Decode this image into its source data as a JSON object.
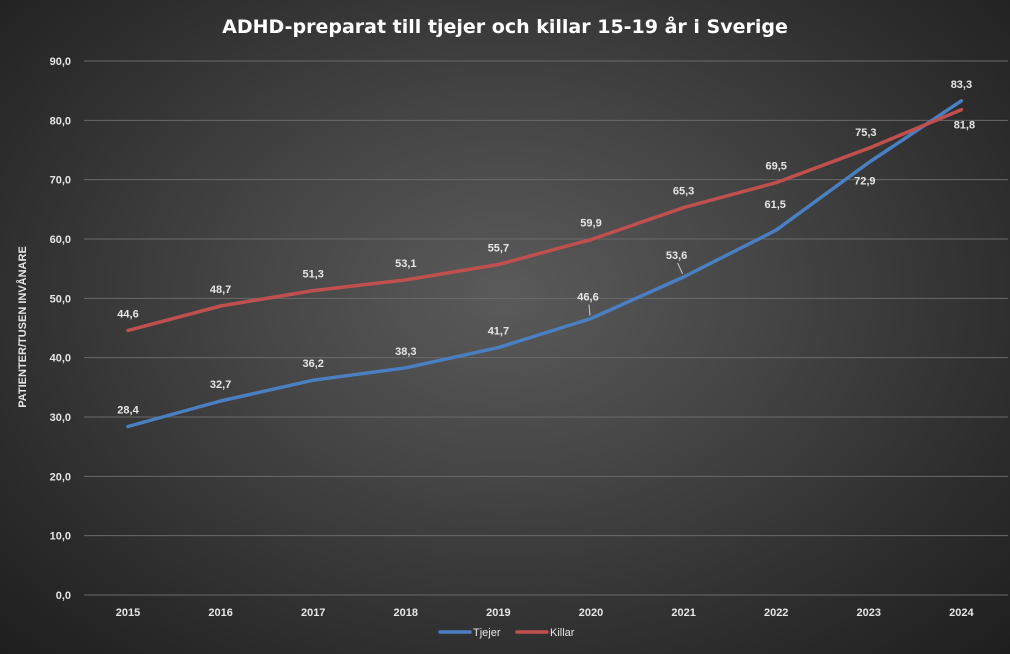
{
  "chart_data": {
    "type": "line",
    "title": "ADHD-preparat till tjejer och killar 15-19 år i Sverige",
    "ylabel": "PATIENTER/TUSEN INVÅNARE",
    "xlabel": "",
    "categories": [
      "2015",
      "2016",
      "2017",
      "2018",
      "2019",
      "2020",
      "2021",
      "2022",
      "2023",
      "2024"
    ],
    "ylim": [
      0,
      90
    ],
    "ytick_values": [
      0,
      10,
      20,
      30,
      40,
      50,
      60,
      70,
      80,
      90
    ],
    "ytick_labels": [
      "0,0",
      "10,0",
      "20,0",
      "30,0",
      "40,0",
      "50,0",
      "60,0",
      "70,0",
      "80,0",
      "90,0"
    ],
    "grid": true,
    "legend_position": "bottom",
    "series": [
      {
        "name": "Tjejer",
        "color": "#4a7fc1",
        "values": [
          28.4,
          32.7,
          36.2,
          38.3,
          41.7,
          46.6,
          53.6,
          61.5,
          72.9,
          83.3
        ],
        "labels": [
          "28,4",
          "32,7",
          "36,2",
          "38,3",
          "41,7",
          "46,6",
          "53,6",
          "61,5",
          "72,9",
          "83,3"
        ]
      },
      {
        "name": "Killar",
        "color": "#c0504d",
        "values": [
          44.6,
          48.7,
          51.3,
          53.1,
          55.7,
          59.9,
          65.3,
          69.5,
          75.3,
          81.8
        ],
        "labels": [
          "44,6",
          "48,7",
          "51,3",
          "53,1",
          "55,7",
          "59,9",
          "65,3",
          "69,5",
          "75,3",
          "81,8"
        ]
      }
    ]
  }
}
